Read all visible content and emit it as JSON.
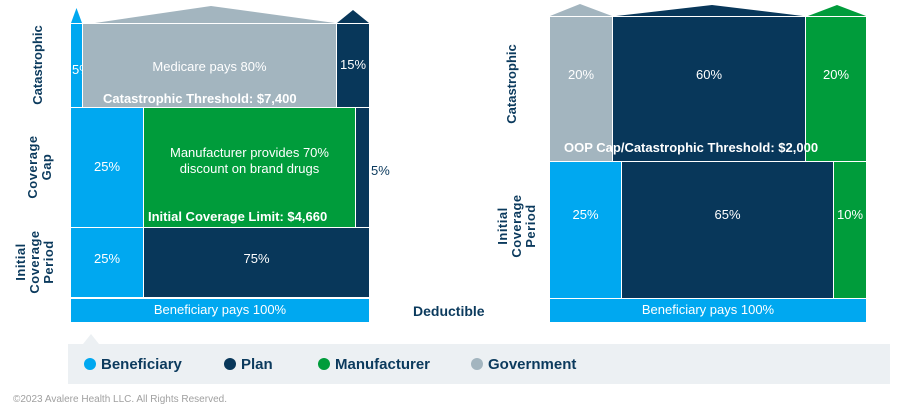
{
  "colors": {
    "beneficiary": "#00a8f0",
    "plan": "#08375a",
    "manufacturer": "#009c3b",
    "government": "#a3b5bf",
    "label_text": "#0b3a5d"
  },
  "left_chart": {
    "rows": {
      "catastrophic": "Catastrophic",
      "coverage_gap": "Coverage\nGap",
      "initial_coverage": "Initial\nCoverage\nPeriod"
    },
    "catastrophic": {
      "beneficiary": "5%",
      "government": "Medicare pays 80%",
      "plan": "15%",
      "threshold": "Catastrophic Threshold: $7,400"
    },
    "coverage_gap": {
      "beneficiary": "25%",
      "manufacturer": "Manufacturer provides 70% discount on brand drugs",
      "plan": "5%",
      "limit": "Initial Coverage Limit: $4,660"
    },
    "initial_coverage": {
      "beneficiary": "25%",
      "plan": "75%"
    },
    "deductible": "Beneficiary pays 100%"
  },
  "deductible_label": "Deductible",
  "right_chart": {
    "rows": {
      "catastrophic": "Catastrophic",
      "initial_coverage": "Initial\nCoverage\nPeriod"
    },
    "catastrophic": {
      "government": "20%",
      "plan": "60%",
      "manufacturer": "20%",
      "threshold": "OOP Cap/Catastrophic Threshold: $2,000"
    },
    "initial_coverage": {
      "beneficiary": "25%",
      "plan": "65%",
      "manufacturer": "10%"
    },
    "deductible": "Beneficiary pays 100%"
  },
  "legend": [
    {
      "label": "Beneficiary",
      "color": "#00a8f0"
    },
    {
      "label": "Plan",
      "color": "#08375a"
    },
    {
      "label": "Manufacturer",
      "color": "#009c3b"
    },
    {
      "label": "Government",
      "color": "#a3b5bf"
    }
  ],
  "footer": "©2023 Avalere Health LLC.  All Rights Reserved."
}
